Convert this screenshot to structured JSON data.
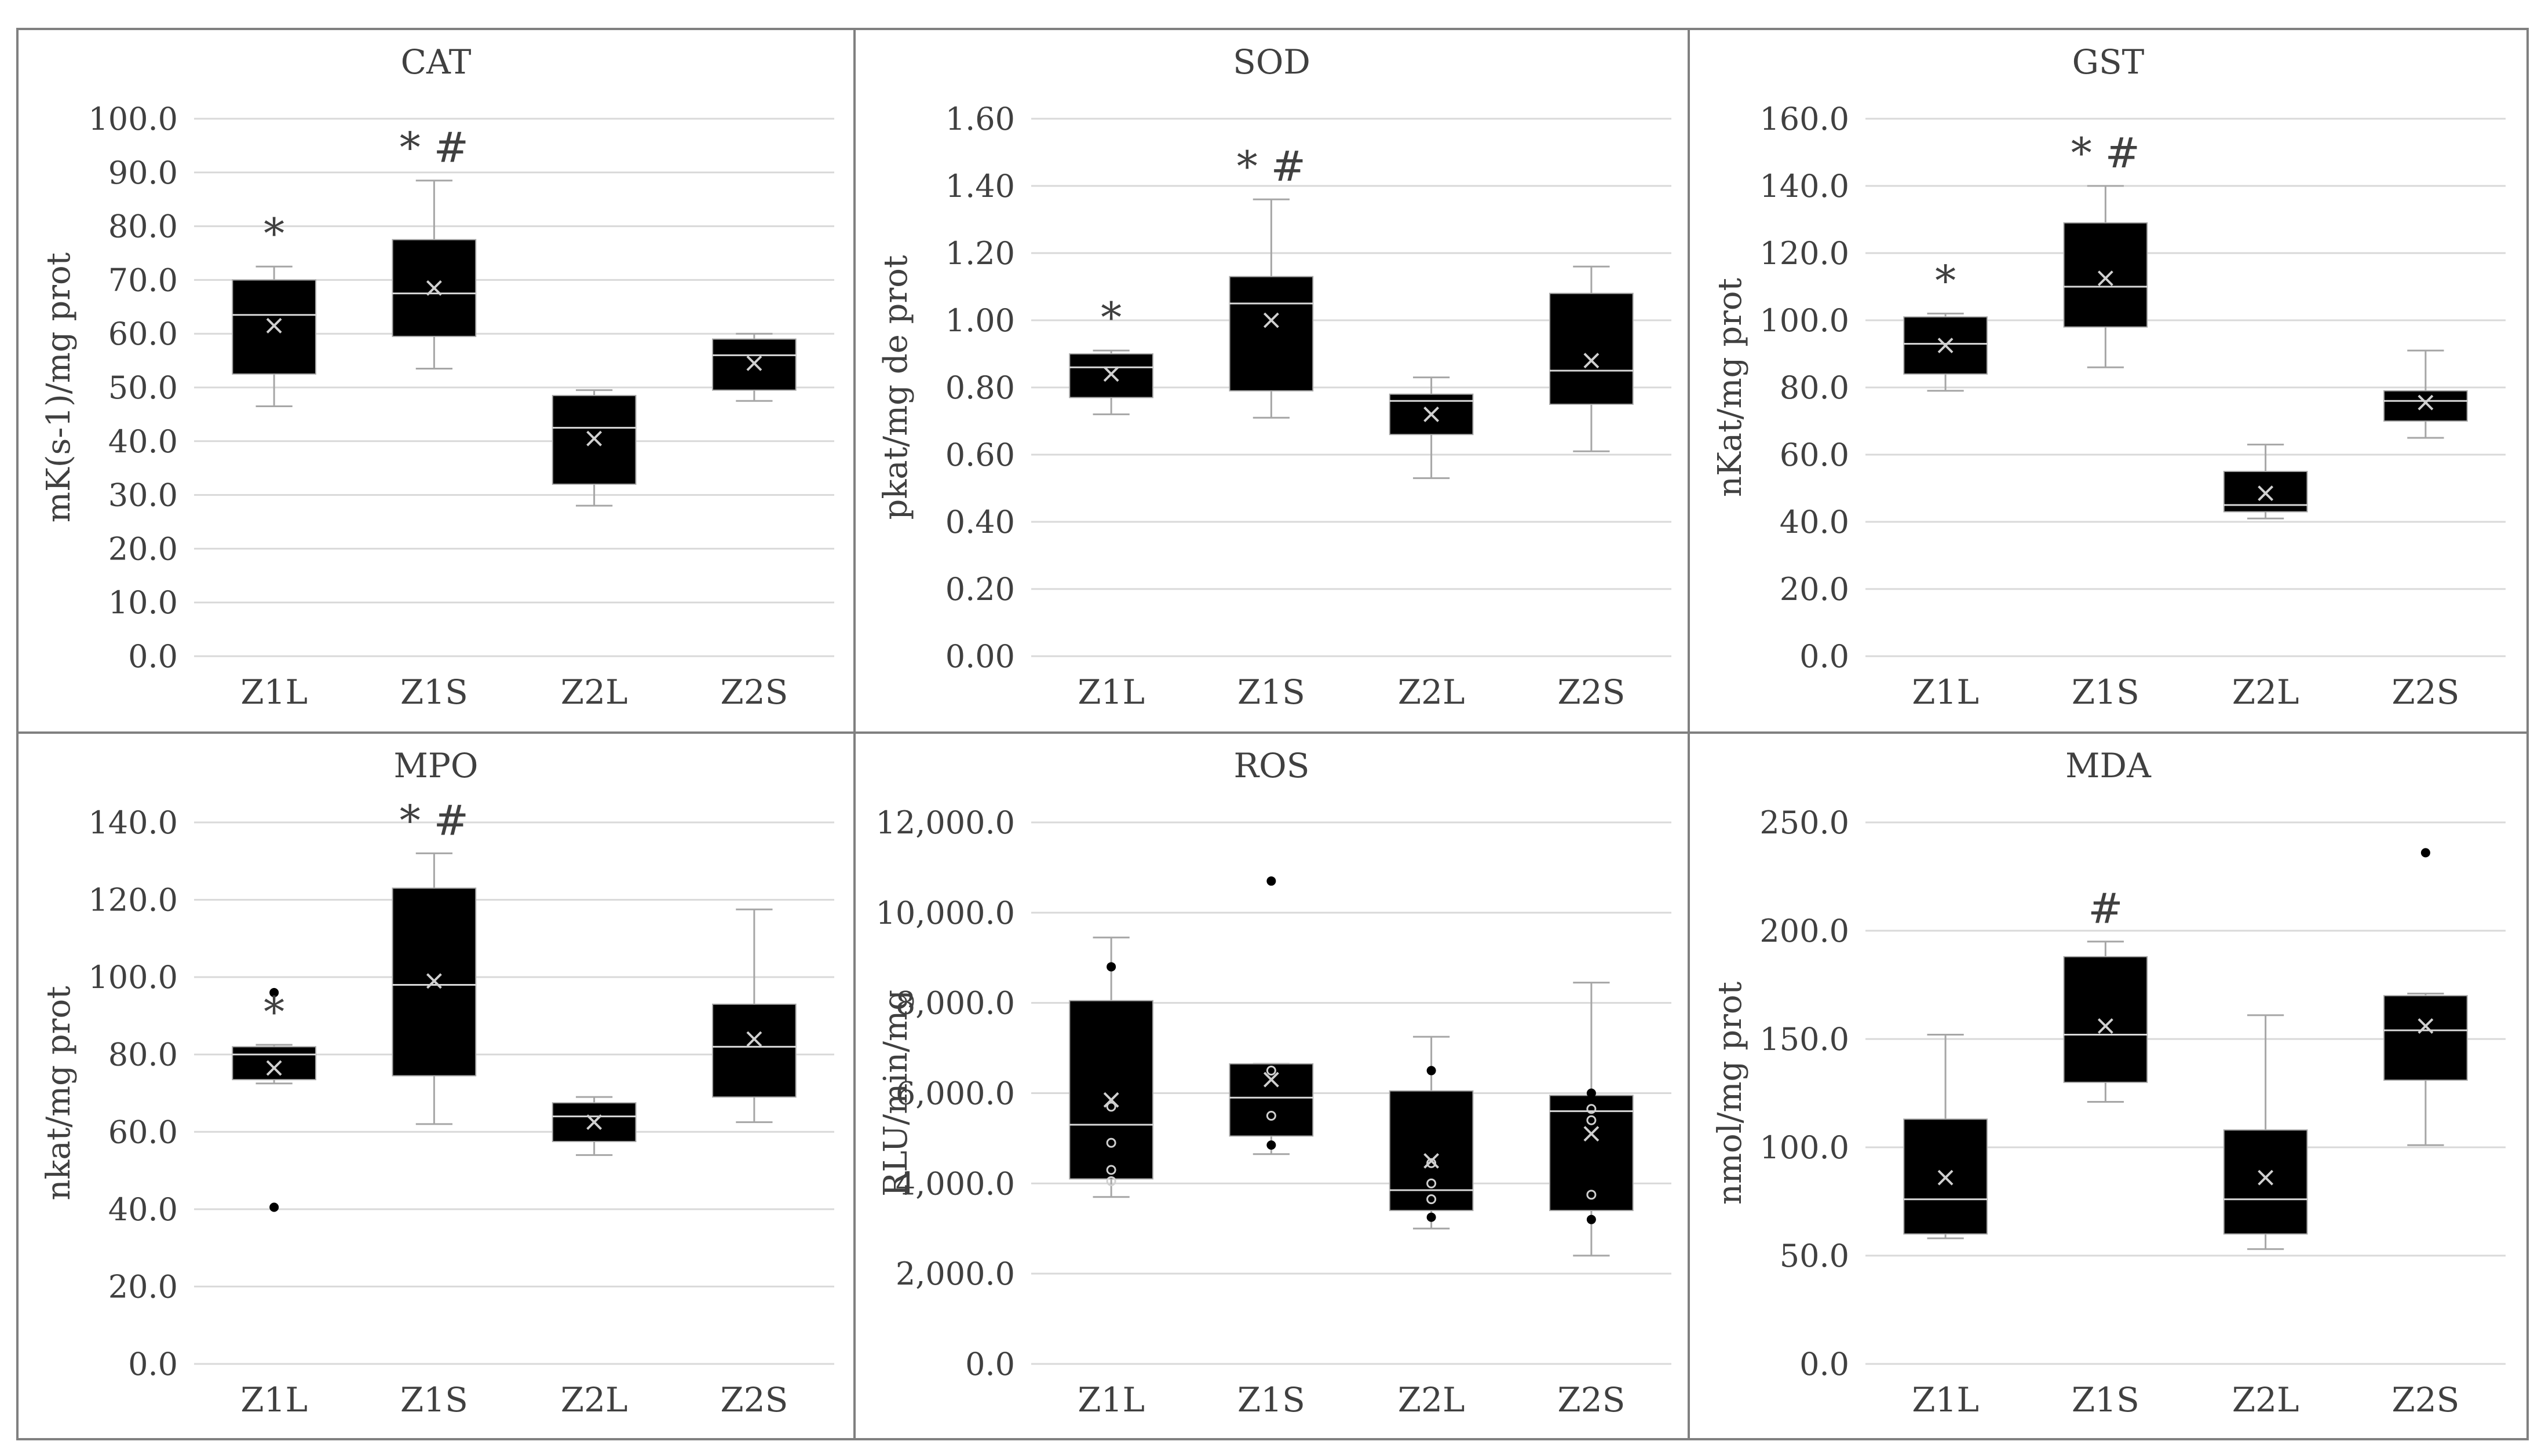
{
  "colors": {
    "box": "#000000",
    "whisker": "#a6a6a6",
    "grid": "#d9d9d9",
    "panel_border": "#808080",
    "text": "#404040",
    "mark": "#ff0000",
    "median": "#ffffff"
  },
  "chart_data": [
    {
      "type": "box",
      "title": "CAT",
      "ylabel": "mK(s-1)/mg prot",
      "ylim": [
        0,
        100
      ],
      "ytick_step": 10,
      "ytick_labels": [
        "0.0",
        "10.0",
        "20.0",
        "30.0",
        "40.0",
        "50.0",
        "60.0",
        "70.0",
        "80.0",
        "90.0",
        "100.0"
      ],
      "categories": [
        "Z1L",
        "Z1S",
        "Z2L",
        "Z2S"
      ],
      "boxes": [
        {
          "min": 46.5,
          "q1": 52.5,
          "median": 63.5,
          "q3": 70,
          "max": 72.5,
          "mean": 61.5,
          "outliers": [],
          "inner": [],
          "mark": "*"
        },
        {
          "min": 53.5,
          "q1": 59.5,
          "median": 67.5,
          "q3": 77.5,
          "max": 88.5,
          "mean": 68.5,
          "outliers": [],
          "inner": [],
          "mark": "* #"
        },
        {
          "min": 28,
          "q1": 32,
          "median": 42.5,
          "q3": 48.5,
          "max": 49.5,
          "mean": 40.5,
          "outliers": [],
          "inner": [],
          "mark": ""
        },
        {
          "min": 47.5,
          "q1": 49.5,
          "median": 56,
          "q3": 59,
          "max": 60,
          "mean": 54.5,
          "outliers": [],
          "inner": [],
          "mark": ""
        }
      ]
    },
    {
      "type": "box",
      "title": "SOD",
      "ylabel": "pkat/mg de prot",
      "ylim": [
        0,
        1.6
      ],
      "ytick_step": 0.2,
      "ytick_labels": [
        "0.00",
        "0.20",
        "0.40",
        "0.60",
        "0.80",
        "1.00",
        "1.20",
        "1.40",
        "1.60"
      ],
      "categories": [
        "Z1L",
        "Z1S",
        "Z2L",
        "Z2S"
      ],
      "boxes": [
        {
          "min": 0.72,
          "q1": 0.77,
          "median": 0.86,
          "q3": 0.9,
          "max": 0.91,
          "mean": 0.84,
          "outliers": [],
          "inner": [],
          "mark": "*"
        },
        {
          "min": 0.71,
          "q1": 0.79,
          "median": 1.05,
          "q3": 1.13,
          "max": 1.36,
          "mean": 1.0,
          "outliers": [],
          "inner": [],
          "mark": "* #"
        },
        {
          "min": 0.53,
          "q1": 0.66,
          "median": 0.76,
          "q3": 0.78,
          "max": 0.83,
          "mean": 0.72,
          "outliers": [],
          "inner": [],
          "mark": ""
        },
        {
          "min": 0.61,
          "q1": 0.75,
          "median": 0.85,
          "q3": 1.08,
          "max": 1.16,
          "mean": 0.88,
          "outliers": [],
          "inner": [],
          "mark": ""
        }
      ]
    },
    {
      "type": "box",
      "title": "GST",
      "ylabel": "nKat/mg prot",
      "ylim": [
        0,
        160
      ],
      "ytick_step": 20,
      "ytick_labels": [
        "0.0",
        "20.0",
        "40.0",
        "60.0",
        "80.0",
        "100.0",
        "120.0",
        "140.0",
        "160.0"
      ],
      "categories": [
        "Z1L",
        "Z1S",
        "Z2L",
        "Z2S"
      ],
      "boxes": [
        {
          "min": 79,
          "q1": 84,
          "median": 93,
          "q3": 101,
          "max": 102,
          "mean": 92.5,
          "outliers": [],
          "inner": [],
          "mark": "*"
        },
        {
          "min": 86,
          "q1": 98,
          "median": 110,
          "q3": 129,
          "max": 140,
          "mean": 112.5,
          "outliers": [],
          "inner": [],
          "mark": "* #"
        },
        {
          "min": 41,
          "q1": 43,
          "median": 45,
          "q3": 55,
          "max": 63,
          "mean": 48.5,
          "outliers": [],
          "inner": [],
          "mark": ""
        },
        {
          "min": 65,
          "q1": 70,
          "median": 76,
          "q3": 79,
          "max": 91,
          "mean": 75.5,
          "outliers": [],
          "inner": [],
          "mark": ""
        }
      ]
    },
    {
      "type": "box",
      "title": "MPO",
      "ylabel": "nkat/mg prot",
      "ylim": [
        0,
        140
      ],
      "ytick_step": 20,
      "ytick_labels": [
        "0.0",
        "20.0",
        "40.0",
        "60.0",
        "80.0",
        "100.0",
        "120.0",
        "140.0"
      ],
      "categories": [
        "Z1L",
        "Z1S",
        "Z2L",
        "Z2S"
      ],
      "boxes": [
        {
          "min": 72.5,
          "q1": 73.5,
          "median": 80,
          "q3": 82,
          "max": 82.5,
          "mean": 76.5,
          "outliers": [
            96,
            40.5
          ],
          "inner": [],
          "mark": "*"
        },
        {
          "min": 62,
          "q1": 74.5,
          "median": 98,
          "q3": 123,
          "max": 132,
          "mean": 99,
          "outliers": [],
          "inner": [],
          "mark": "* #"
        },
        {
          "min": 54,
          "q1": 57.5,
          "median": 64,
          "q3": 67.5,
          "max": 69,
          "mean": 62.5,
          "outliers": [],
          "inner": [],
          "mark": ""
        },
        {
          "min": 62.5,
          "q1": 69,
          "median": 82,
          "q3": 93,
          "max": 117.5,
          "mean": 84,
          "outliers": [],
          "inner": [],
          "mark": ""
        }
      ]
    },
    {
      "type": "box",
      "title": "ROS",
      "ylabel": "RLU/min/mg",
      "ylim": [
        0,
        12000
      ],
      "ytick_step": 2000,
      "ytick_labels": [
        "0.0",
        "2,000.0",
        "4,000.0",
        "6,000.0",
        "8,000.0",
        "10,000.0",
        "12,000.0"
      ],
      "categories": [
        "Z1L",
        "Z1S",
        "Z2L",
        "Z2S"
      ],
      "boxes": [
        {
          "min": 3700,
          "q1": 4100,
          "median": 5300,
          "q3": 8050,
          "max": 9450,
          "mean": 5850,
          "outliers": [
            8800
          ],
          "inner": [
            5700,
            4900,
            4300,
            4050
          ],
          "mark": ""
        },
        {
          "min": 4650,
          "q1": 5050,
          "median": 5900,
          "q3": 6650,
          "max": 6650,
          "mean": 6300,
          "outliers": [
            10700,
            4850
          ],
          "inner": [
            6500,
            5500
          ],
          "mark": ""
        },
        {
          "min": 3000,
          "q1": 3400,
          "median": 3850,
          "q3": 6050,
          "max": 7250,
          "mean": 4500,
          "outliers": [
            6500,
            3250
          ],
          "inner": [
            4450,
            4000,
            3650
          ],
          "mark": ""
        },
        {
          "min": 2400,
          "q1": 3400,
          "median": 5600,
          "q3": 5950,
          "max": 8450,
          "mean": 5100,
          "outliers": [
            6000,
            3200
          ],
          "inner": [
            5650,
            5400,
            3750
          ],
          "mark": ""
        }
      ]
    },
    {
      "type": "box",
      "title": "MDA",
      "ylabel": "nmol/mg prot",
      "ylim": [
        0,
        250
      ],
      "ytick_step": 50,
      "ytick_labels": [
        "0.0",
        "50.0",
        "100.0",
        "150.0",
        "200.0",
        "250.0"
      ],
      "categories": [
        "Z1L",
        "Z1S",
        "Z2L",
        "Z2S"
      ],
      "boxes": [
        {
          "min": 58,
          "q1": 60,
          "median": 76,
          "q3": 113,
          "max": 152,
          "mean": 86,
          "outliers": [],
          "inner": [],
          "mark": ""
        },
        {
          "min": 121,
          "q1": 130,
          "median": 152,
          "q3": 188,
          "max": 195,
          "mean": 156,
          "outliers": [],
          "inner": [],
          "mark": "#"
        },
        {
          "min": 53,
          "q1": 60,
          "median": 76,
          "q3": 108,
          "max": 161,
          "mean": 86,
          "outliers": [],
          "inner": [],
          "mark": ""
        },
        {
          "min": 101,
          "q1": 131,
          "median": 154,
          "q3": 170,
          "max": 171,
          "mean": 156,
          "outliers": [
            236
          ],
          "inner": [],
          "mark": ""
        }
      ]
    }
  ]
}
